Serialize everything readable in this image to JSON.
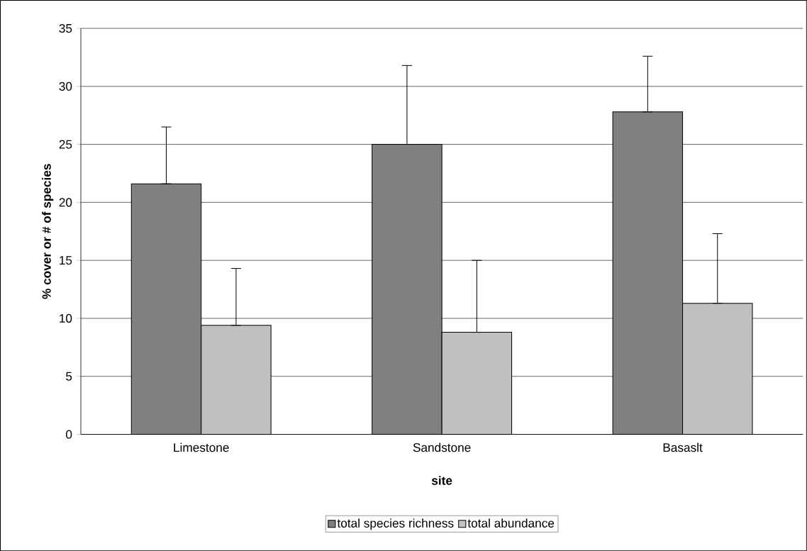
{
  "chart_data": {
    "type": "bar",
    "categories": [
      "Limestone",
      "Sandstone",
      "Basaslt"
    ],
    "xlabel": "site",
    "ylabel": "% cover or # of species",
    "ylim": [
      0,
      35
    ],
    "yticks": [
      0,
      5,
      10,
      15,
      20,
      25,
      30,
      35
    ],
    "grid": "y",
    "legend": "bottom",
    "series": [
      {
        "name": "total species richness",
        "color": "#808080",
        "values": [
          21.6,
          25.0,
          27.8
        ],
        "errors": [
          [
            21.6,
            26.5
          ],
          [
            25.0,
            31.8
          ],
          [
            27.8,
            32.6
          ]
        ]
      },
      {
        "name": "total abundance",
        "color": "#c0c0c0",
        "values": [
          9.4,
          8.8,
          11.3
        ],
        "errors": [
          [
            9.4,
            14.3
          ],
          [
            8.8,
            15.0
          ],
          [
            11.3,
            17.3
          ]
        ]
      }
    ]
  }
}
